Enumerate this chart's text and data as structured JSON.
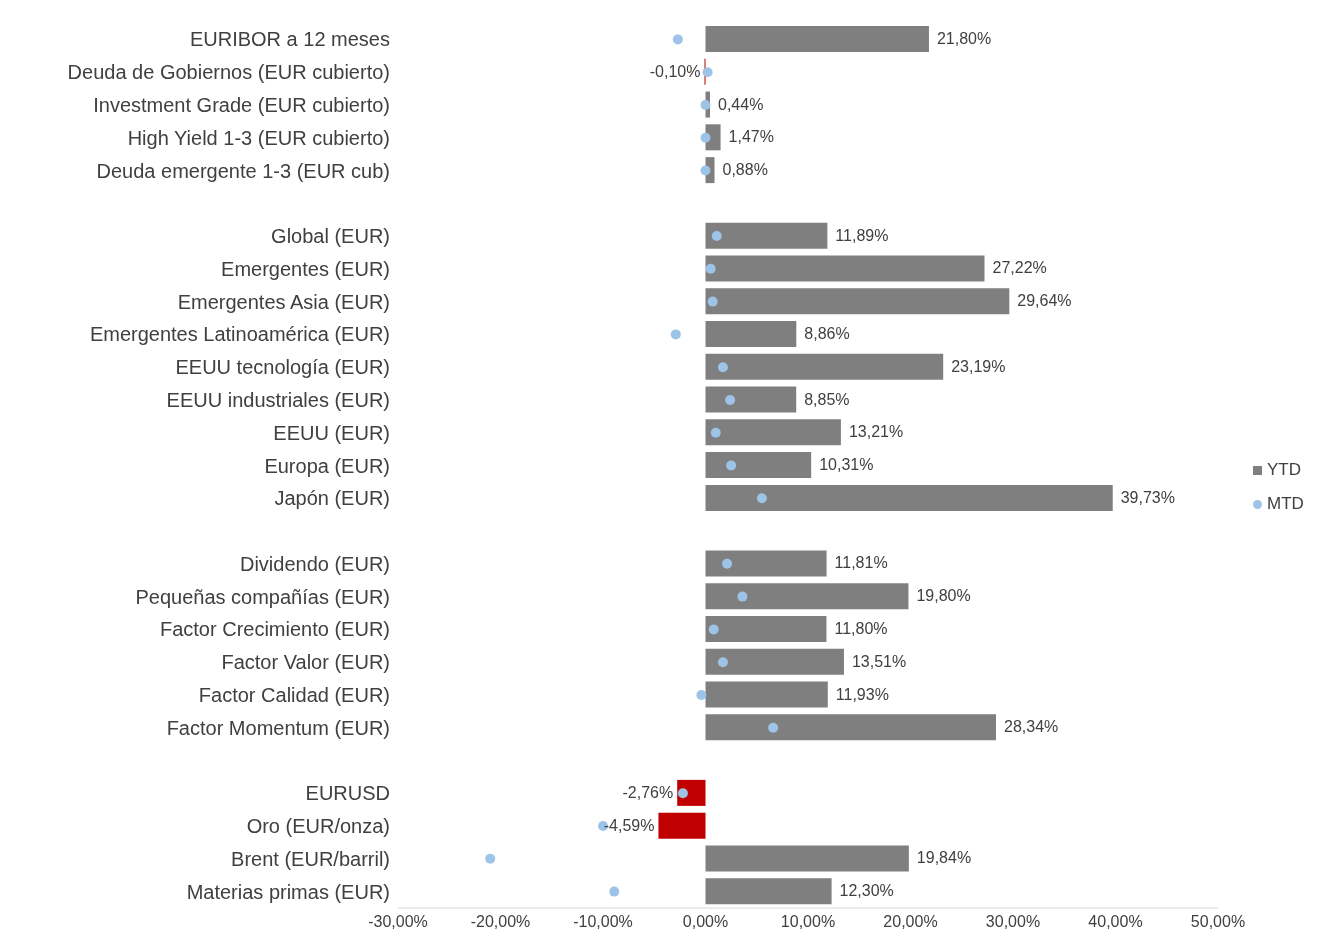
{
  "chart_data": {
    "type": "bar",
    "orientation": "horizontal",
    "categories": [
      "EURIBOR a 12 meses",
      "Deuda de Gobiernos (EUR cubierto)",
      "Investment Grade (EUR cubierto)",
      "High Yield 1-3 (EUR cubierto)",
      "Deuda emergente 1-3 (EUR cub)",
      null,
      "Global (EUR)",
      "Emergentes (EUR)",
      "Emergentes Asia (EUR)",
      "Emergentes Latinoamérica (EUR)",
      "EEUU tecnología (EUR)",
      "EEUU industriales (EUR)",
      "EEUU (EUR)",
      "Europa (EUR)",
      "Japón (EUR)",
      null,
      "Dividendo (EUR)",
      "Pequeñas compañías (EUR)",
      "Factor Crecimiento (EUR)",
      "Factor Valor (EUR)",
      "Factor Calidad (EUR)",
      "Factor Momentum (EUR)",
      null,
      "EURUSD",
      "Oro (EUR/onza)",
      "Brent (EUR/barril)",
      "Materias primas (EUR)"
    ],
    "series": [
      {
        "name": "YTD",
        "color": "#7f7f7f",
        "colors": [
          "#7f7f7f",
          "#c00000",
          "#7f7f7f",
          "#7f7f7f",
          "#7f7f7f",
          null,
          "#7f7f7f",
          "#7f7f7f",
          "#7f7f7f",
          "#7f7f7f",
          "#7f7f7f",
          "#7f7f7f",
          "#7f7f7f",
          "#7f7f7f",
          "#7f7f7f",
          null,
          "#7f7f7f",
          "#7f7f7f",
          "#7f7f7f",
          "#7f7f7f",
          "#7f7f7f",
          "#7f7f7f",
          null,
          "#c00000",
          "#c00000",
          "#7f7f7f",
          "#7f7f7f"
        ],
        "values": [
          21.8,
          -0.1,
          0.44,
          1.47,
          0.88,
          null,
          11.89,
          27.22,
          29.64,
          8.86,
          23.19,
          8.85,
          13.21,
          10.31,
          39.73,
          null,
          11.81,
          19.8,
          11.8,
          13.51,
          11.93,
          28.34,
          null,
          -2.76,
          -4.59,
          19.84,
          12.3
        ],
        "value_labels": [
          "21,80%",
          "-0,10%",
          "0,44%",
          "1,47%",
          "0,88%",
          null,
          "11,89%",
          "27,22%",
          "29,64%",
          "8,86%",
          "23,19%",
          "8,85%",
          "13,21%",
          "10,31%",
          "39,73%",
          null,
          "11,81%",
          "19,80%",
          "11,80%",
          "13,51%",
          "11,93%",
          "28,34%",
          null,
          "-2,76%",
          "-4,59%",
          "19,84%",
          "12,30%"
        ]
      },
      {
        "name": "MTD",
        "type": "scatter",
        "color": "#9dc3e6",
        "values": [
          -2.7,
          0.2,
          0,
          0,
          0,
          null,
          1.1,
          0.5,
          0.7,
          -2.9,
          1.7,
          2.4,
          1.0,
          2.5,
          5.5,
          null,
          2.1,
          3.6,
          0.8,
          1.7,
          -0.4,
          6.6,
          null,
          -2.2,
          -10.0,
          -21.0,
          -8.9
        ]
      }
    ],
    "xlim": [
      -30,
      50
    ],
    "xticks": [
      {
        "value": -30,
        "label": "-30,00%"
      },
      {
        "value": -20,
        "label": "-20,00%"
      },
      {
        "value": -10,
        "label": "-10,00%"
      },
      {
        "value": 0,
        "label": "0,00%"
      },
      {
        "value": 10,
        "label": "10,00%"
      },
      {
        "value": 20,
        "label": "20,00%"
      },
      {
        "value": 30,
        "label": "30,00%"
      },
      {
        "value": 40,
        "label": "40,00%"
      },
      {
        "value": 50,
        "label": "50,00%"
      }
    ],
    "legend": "right",
    "marker": "circle"
  }
}
